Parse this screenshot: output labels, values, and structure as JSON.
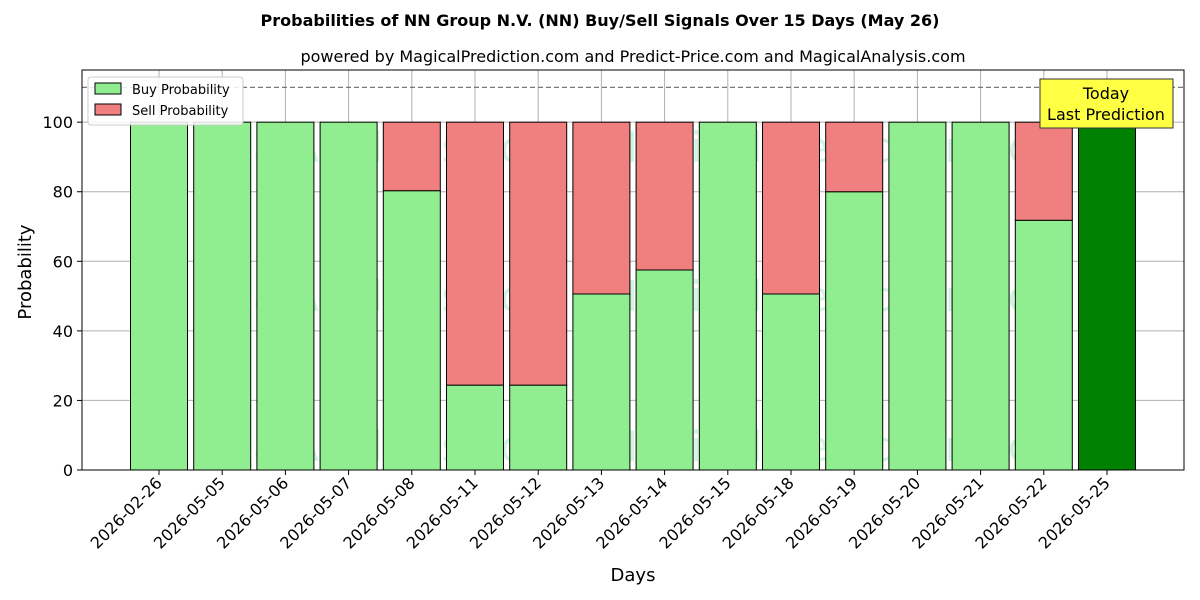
{
  "chart_data": {
    "type": "bar",
    "stacked": true,
    "title": "Probabilities of NN Group N.V. (NN) Buy/Sell Signals Over 15 Days (May 26)",
    "subtitle": "powered by MagicalPrediction.com and Predict-Price.com and MagicalAnalysis.com",
    "xlabel": "Days",
    "ylabel": "Probability",
    "ylim": [
      0,
      115
    ],
    "yticks": [
      0,
      20,
      40,
      60,
      80,
      100
    ],
    "reference_line": 110,
    "grid": true,
    "legend_position": "top-left",
    "categories": [
      "2026-02-26",
      "2026-05-05",
      "2026-05-06",
      "2026-05-07",
      "2026-05-08",
      "2026-05-11",
      "2026-05-12",
      "2026-05-13",
      "2026-05-14",
      "2026-05-15",
      "2026-05-18",
      "2026-05-19",
      "2026-05-20",
      "2026-05-21",
      "2026-05-22",
      "2026-05-25"
    ],
    "series": [
      {
        "name": "Buy Probability",
        "color": "#90ee90",
        "values": [
          100,
          100,
          100,
          100,
          80.3,
          24.4,
          24.4,
          50.6,
          57.5,
          100,
          50.6,
          80,
          100,
          100,
          71.8,
          100
        ]
      },
      {
        "name": "Sell Probability",
        "color": "#f08080",
        "values": [
          0,
          0,
          0,
          0,
          19.7,
          75.6,
          75.6,
          49.4,
          42.5,
          0,
          49.4,
          20,
          0,
          0,
          28.2,
          0
        ]
      }
    ],
    "highlight": {
      "category": "2026-05-25",
      "color": "#008000"
    },
    "annotation": {
      "line1": "Today",
      "line2": "Last Prediction",
      "background": "#ffff44"
    },
    "watermarks": [
      "MagicalAnalysis.com",
      "MagicalPrediction.com"
    ]
  }
}
